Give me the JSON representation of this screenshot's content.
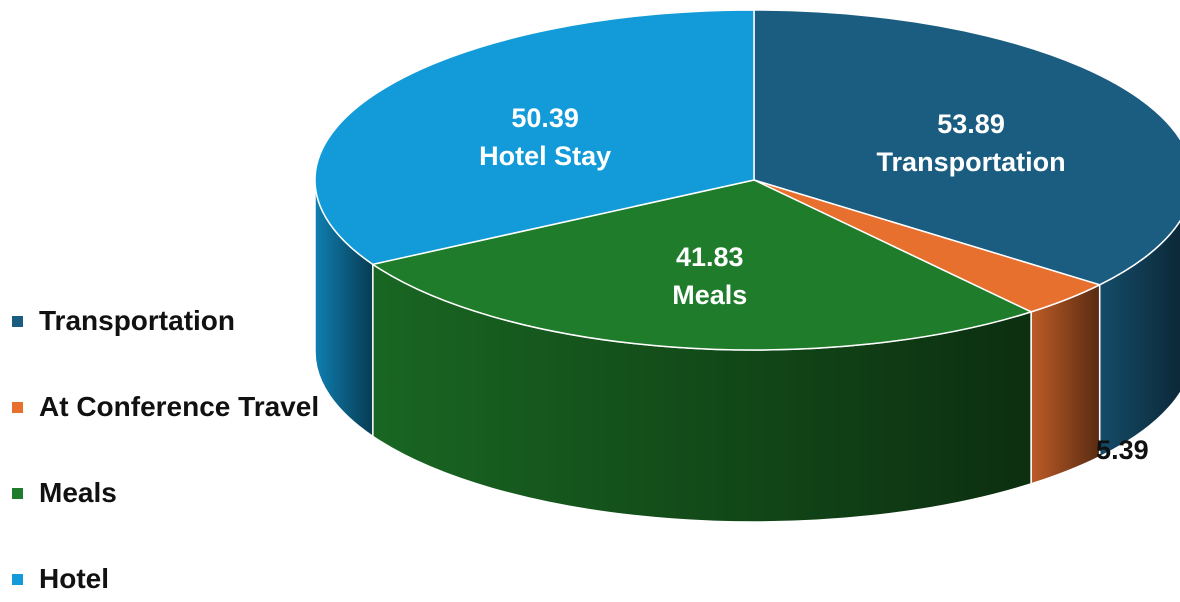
{
  "chart_data": {
    "type": "pie",
    "variant": "3d",
    "title": "",
    "slices": [
      {
        "name": "Transportation",
        "value": 53.89,
        "label": "53.89",
        "category": "Transportation",
        "color": "#1a5d80",
        "label_color": "#ffffff"
      },
      {
        "name": "At Conference Travel",
        "value": 5.39,
        "label": "5.39",
        "category": "",
        "color": "#e8702f",
        "label_color": "#111111"
      },
      {
        "name": "Meals",
        "value": 41.83,
        "label": "41.83",
        "category": "Meals",
        "color": "#1f7c2a",
        "label_color": "#ffffff"
      },
      {
        "name": "Hotel",
        "value": 50.39,
        "label": "50.39",
        "category": "Hotel Stay",
        "color": "#129bd8",
        "label_color": "#ffffff"
      }
    ],
    "legend": {
      "position": "left",
      "items": [
        {
          "label": "Transportation",
          "color": "#1a5d80"
        },
        {
          "label": "At Conference Travel",
          "color": "#e8702f"
        },
        {
          "label": "Meals",
          "color": "#1f7c2a"
        },
        {
          "label": "Hotel",
          "color": "#129bd8"
        }
      ]
    }
  }
}
